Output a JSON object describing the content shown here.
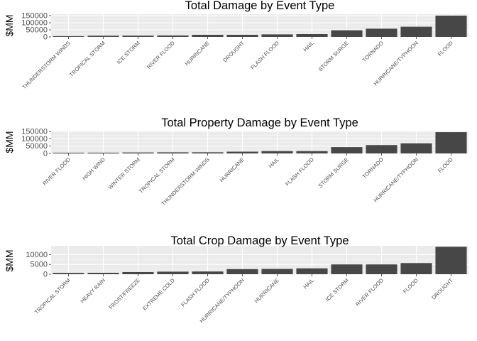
{
  "colors": {
    "panel_bg": "#ebebeb",
    "grid_major": "#ffffff",
    "grid_minor": "#f5f5f5",
    "bar_fill": "#474747",
    "axis_text": "#4d4d4d",
    "title_text": "#000000"
  },
  "chart_data": [
    {
      "type": "bar",
      "title": "Total Damage by Event Type",
      "ylabel": "$MM",
      "xlabel": "",
      "grid": true,
      "ylim": [
        0,
        160000
      ],
      "yticks": [
        0,
        50000,
        100000,
        150000
      ],
      "ytick_labels": [
        "0",
        "50000",
        "100000",
        "150000"
      ],
      "categories": [
        "THUNDERSTORM WINDS",
        "TROPICAL STORM",
        "ICE STORM",
        "RIVER FLOOD",
        "HURRICANE",
        "DROUGHT",
        "FLASH FLOOD",
        "HAIL",
        "STORM SURGE",
        "TORNADO",
        "HURRICANE/TYPHOON",
        "FLOOD"
      ],
      "values": [
        5500,
        8400,
        9000,
        10200,
        15000,
        15000,
        18000,
        20000,
        47000,
        58000,
        72000,
        150000
      ]
    },
    {
      "type": "bar",
      "title": "Total Property Damage by Event Type",
      "ylabel": "$MM",
      "xlabel": "",
      "grid": true,
      "ylim": [
        0,
        155000
      ],
      "yticks": [
        0,
        50000,
        100000,
        150000
      ],
      "ytick_labels": [
        "0",
        "50000",
        "100000",
        "150000"
      ],
      "categories": [
        "RIVER FLOOD",
        "HIGH WIND",
        "WINTER STORM",
        "TROPICAL STORM",
        "THUNDERSTORM WINDS",
        "HURRICANE",
        "HAIL",
        "FLASH FLOOD",
        "STORM SURGE",
        "TORNADO",
        "HURRICANE/TYPHOON",
        "FLOOD"
      ],
      "values": [
        5100,
        5200,
        6700,
        7700,
        8000,
        12000,
        16000,
        16000,
        43000,
        57000,
        69000,
        145000
      ]
    },
    {
      "type": "bar",
      "title": "Total Crop Damage by Event Type",
      "ylabel": "$MM",
      "xlabel": "",
      "grid": true,
      "ylim": [
        0,
        14500
      ],
      "yticks": [
        0,
        5000,
        10000
      ],
      "ytick_labels": [
        "0",
        "5000",
        "10000"
      ],
      "categories": [
        "TROPICAL STORM",
        "HEAVY RAIN",
        "FROST/FREEZE",
        "EXTREME COLD",
        "FLASH FLOOD",
        "HURRICANE/TYPHOON",
        "HURRICANE",
        "HAIL",
        "ICE STORM",
        "RIVER FLOOD",
        "FLOOD",
        "DROUGHT"
      ],
      "values": [
        680,
        730,
        1100,
        1300,
        1400,
        2600,
        2700,
        3000,
        5000,
        5000,
        5700,
        14000
      ]
    }
  ]
}
